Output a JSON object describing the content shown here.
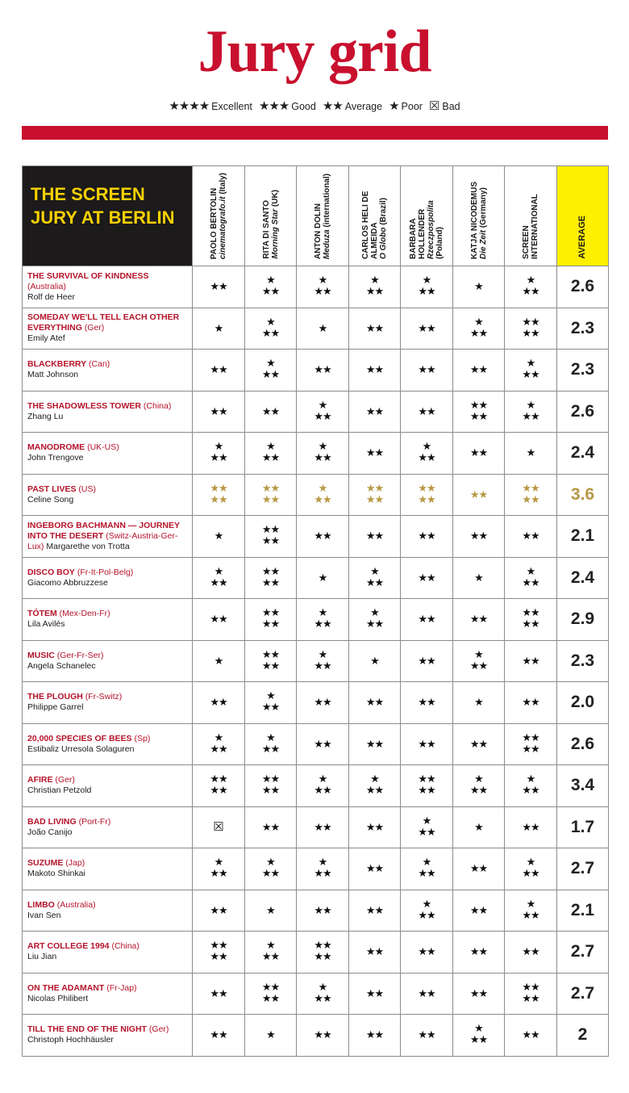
{
  "title": "Jury grid",
  "legend": [
    {
      "stars": "★★★★",
      "label": "Excellent"
    },
    {
      "stars": "★★★",
      "label": "Good"
    },
    {
      "stars": "★★",
      "label": "Average"
    },
    {
      "stars": "★",
      "label": "Poor"
    },
    {
      "stars": "☒",
      "label": "Bad"
    }
  ],
  "jury_heading": "THE SCREEN JURY AT BERLIN",
  "jurors": [
    {
      "name": "PAOLO BERTOLIN",
      "pub": "cinematografo.it",
      "country": "(Italy)"
    },
    {
      "name": "RITA DI SANTO",
      "pub": "Morning Star",
      "country": "(UK)"
    },
    {
      "name": "ANTON DOLIN",
      "pub": "Meduza",
      "country": "(international)"
    },
    {
      "name": "CARLOS HELI DE ALMEIDA",
      "pub": "O Globo",
      "country": "(Brazil)"
    },
    {
      "name": "BARBARA HOLLENDER",
      "pub": "Rzeczpospolita",
      "country": "(Poland)"
    },
    {
      "name": "KATJA NICODEMUS",
      "pub": "Die Zeit",
      "country": "(Germany)"
    },
    {
      "name": "SCREEN INTERNATIONAL",
      "pub": "",
      "country": ""
    }
  ],
  "average_label": "AVERAGE",
  "highlight_color": "#b79845",
  "accent_color": "#c8102e",
  "films": [
    {
      "title": "THE SURVIVAL OF KINDNESS",
      "country": "(Australia)",
      "director": "Rolf de Heer",
      "scores": [
        2,
        3,
        3,
        3,
        3,
        1,
        3
      ],
      "avg": "2.6"
    },
    {
      "title": "SOMEDAY WE'LL TELL EACH OTHER EVERYTHING",
      "country": "(Ger)",
      "director": "Emily Atef",
      "scores": [
        1,
        3,
        1,
        2,
        2,
        3,
        4
      ],
      "avg": "2.3"
    },
    {
      "title": "BLACKBERRY",
      "country": "(Can)",
      "director": "Matt Johnson",
      "scores": [
        2,
        3,
        2,
        2,
        2,
        2,
        3
      ],
      "avg": "2.3"
    },
    {
      "title": "THE SHADOWLESS TOWER",
      "country": "(China)",
      "director": "Zhang Lu",
      "scores": [
        2,
        2,
        3,
        2,
        2,
        4,
        3
      ],
      "avg": "2.6"
    },
    {
      "title": "MANODROME",
      "country": "(UK-US)",
      "director": "John Trengove",
      "scores": [
        3,
        3,
        3,
        2,
        3,
        2,
        1
      ],
      "avg": "2.4"
    },
    {
      "title": "PAST LIVES",
      "country": "(US)",
      "director": "Celine Song",
      "scores": [
        4,
        4,
        3,
        4,
        4,
        2,
        4
      ],
      "avg": "3.6",
      "highlight": true
    },
    {
      "title": "INGEBORG BACHMANN — JOURNEY INTO THE DESERT",
      "country": "(Switz-Austria-Ger-Lux)",
      "director": "Margarethe von Trotta",
      "scores": [
        1,
        4,
        2,
        2,
        2,
        2,
        2
      ],
      "avg": "2.1"
    },
    {
      "title": "DISCO BOY",
      "country": "(Fr-It-Pol-Belg)",
      "director": "Giacomo Abbruzzese",
      "scores": [
        3,
        4,
        1,
        3,
        2,
        1,
        3
      ],
      "avg": "2.4"
    },
    {
      "title": "TÓTEM",
      "country": "(Mex-Den-Fr)",
      "director": "Lila Avilés",
      "scores": [
        2,
        4,
        3,
        3,
        2,
        2,
        4
      ],
      "avg": "2.9"
    },
    {
      "title": "MUSIC",
      "country": "(Ger-Fr-Ser)",
      "director": "Angela Schanelec",
      "scores": [
        1,
        4,
        3,
        1,
        2,
        3,
        2
      ],
      "avg": "2.3"
    },
    {
      "title": "THE PLOUGH",
      "country": "(Fr-Switz)",
      "director": "Philippe Garrel",
      "scores": [
        2,
        3,
        2,
        2,
        2,
        1,
        2
      ],
      "avg": "2.0"
    },
    {
      "title": "20,000 SPECIES OF BEES",
      "country": "(Sp)",
      "director": "Estibaliz Urresola Solaguren",
      "scores": [
        3,
        3,
        2,
        2,
        2,
        2,
        4
      ],
      "avg": "2.6"
    },
    {
      "title": "AFIRE",
      "country": "(Ger)",
      "director": "Christian Petzold",
      "scores": [
        4,
        4,
        3,
        3,
        4,
        3,
        3
      ],
      "avg": "3.4"
    },
    {
      "title": "BAD LIVING",
      "country": "(Port-Fr)",
      "director": "João Canijo",
      "scores": [
        0,
        2,
        2,
        2,
        3,
        1,
        2
      ],
      "avg": "1.7"
    },
    {
      "title": "SUZUME",
      "country": "(Jap)",
      "director": "Makoto Shinkai",
      "scores": [
        3,
        3,
        3,
        2,
        3,
        2,
        3
      ],
      "avg": "2.7"
    },
    {
      "title": "LIMBO",
      "country": "(Australia)",
      "director": "Ivan Sen",
      "scores": [
        2,
        1,
        2,
        2,
        3,
        2,
        3
      ],
      "avg": "2.1"
    },
    {
      "title": "ART COLLEGE 1994",
      "country": "(China)",
      "director": "Liu Jian",
      "scores": [
        4,
        3,
        4,
        2,
        2,
        2,
        2
      ],
      "avg": "2.7"
    },
    {
      "title": "ON THE ADAMANT",
      "country": "(Fr-Jap)",
      "director": "Nicolas Philibert",
      "scores": [
        2,
        4,
        3,
        2,
        2,
        2,
        4
      ],
      "avg": "2.7"
    },
    {
      "title": "TILL THE END OF THE NIGHT",
      "country": "(Ger)",
      "director": "Christoph Hochhäusler",
      "scores": [
        2,
        1,
        2,
        2,
        2,
        3,
        2
      ],
      "avg": "2"
    }
  ]
}
